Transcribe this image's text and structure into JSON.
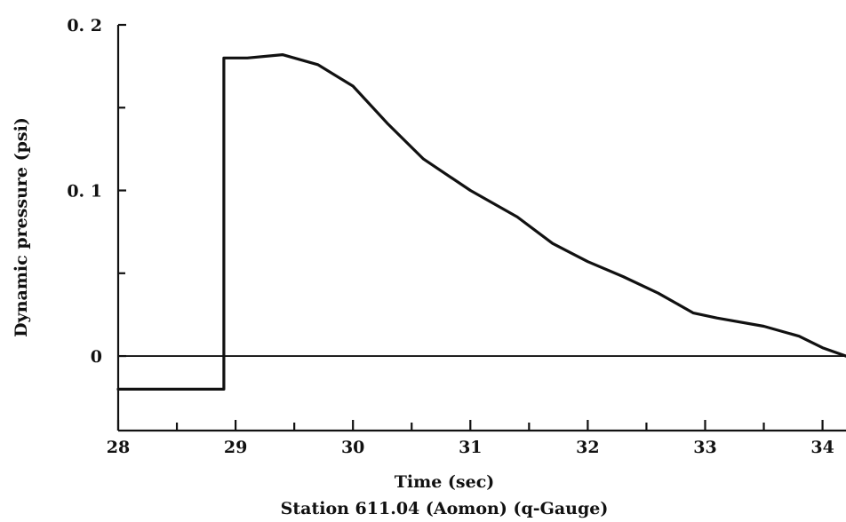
{
  "chart_data": {
    "type": "line",
    "title": "",
    "caption": "Station 611.04 (Aomon) (q-Gauge)",
    "xlabel": "Time (sec)",
    "ylabel": "Dynamic pressure (psi)",
    "xlim": [
      28,
      34.2
    ],
    "ylim": [
      -0.045,
      0.2
    ],
    "x_ticks": [
      28,
      29,
      30,
      31,
      32,
      33,
      34
    ],
    "x_tick_labels": [
      "28",
      "29",
      "30",
      "31",
      "32",
      "33",
      "34"
    ],
    "x_minor_ticks": [
      28.5,
      29.5,
      30.5,
      31.5,
      32.5,
      33.5
    ],
    "y_ticks": [
      0,
      0.1,
      0.2
    ],
    "y_tick_labels": [
      "0",
      "0. 1",
      "0. 2"
    ],
    "y_minor_ticks": [
      0.05,
      0.15
    ],
    "zero_line": true,
    "grid": false,
    "series": [
      {
        "name": "",
        "x": [
          28.0,
          28.9,
          28.9,
          29.1,
          29.4,
          29.7,
          30.0,
          30.3,
          30.6,
          31.0,
          31.4,
          31.7,
          32.0,
          32.3,
          32.6,
          32.9,
          33.1,
          33.5,
          33.8,
          34.0,
          34.2
        ],
        "y": [
          -0.02,
          -0.02,
          0.18,
          0.18,
          0.182,
          0.176,
          0.163,
          0.14,
          0.119,
          0.1,
          0.084,
          0.068,
          0.057,
          0.048,
          0.038,
          0.026,
          0.023,
          0.018,
          0.012,
          0.005,
          0.0
        ]
      }
    ]
  }
}
